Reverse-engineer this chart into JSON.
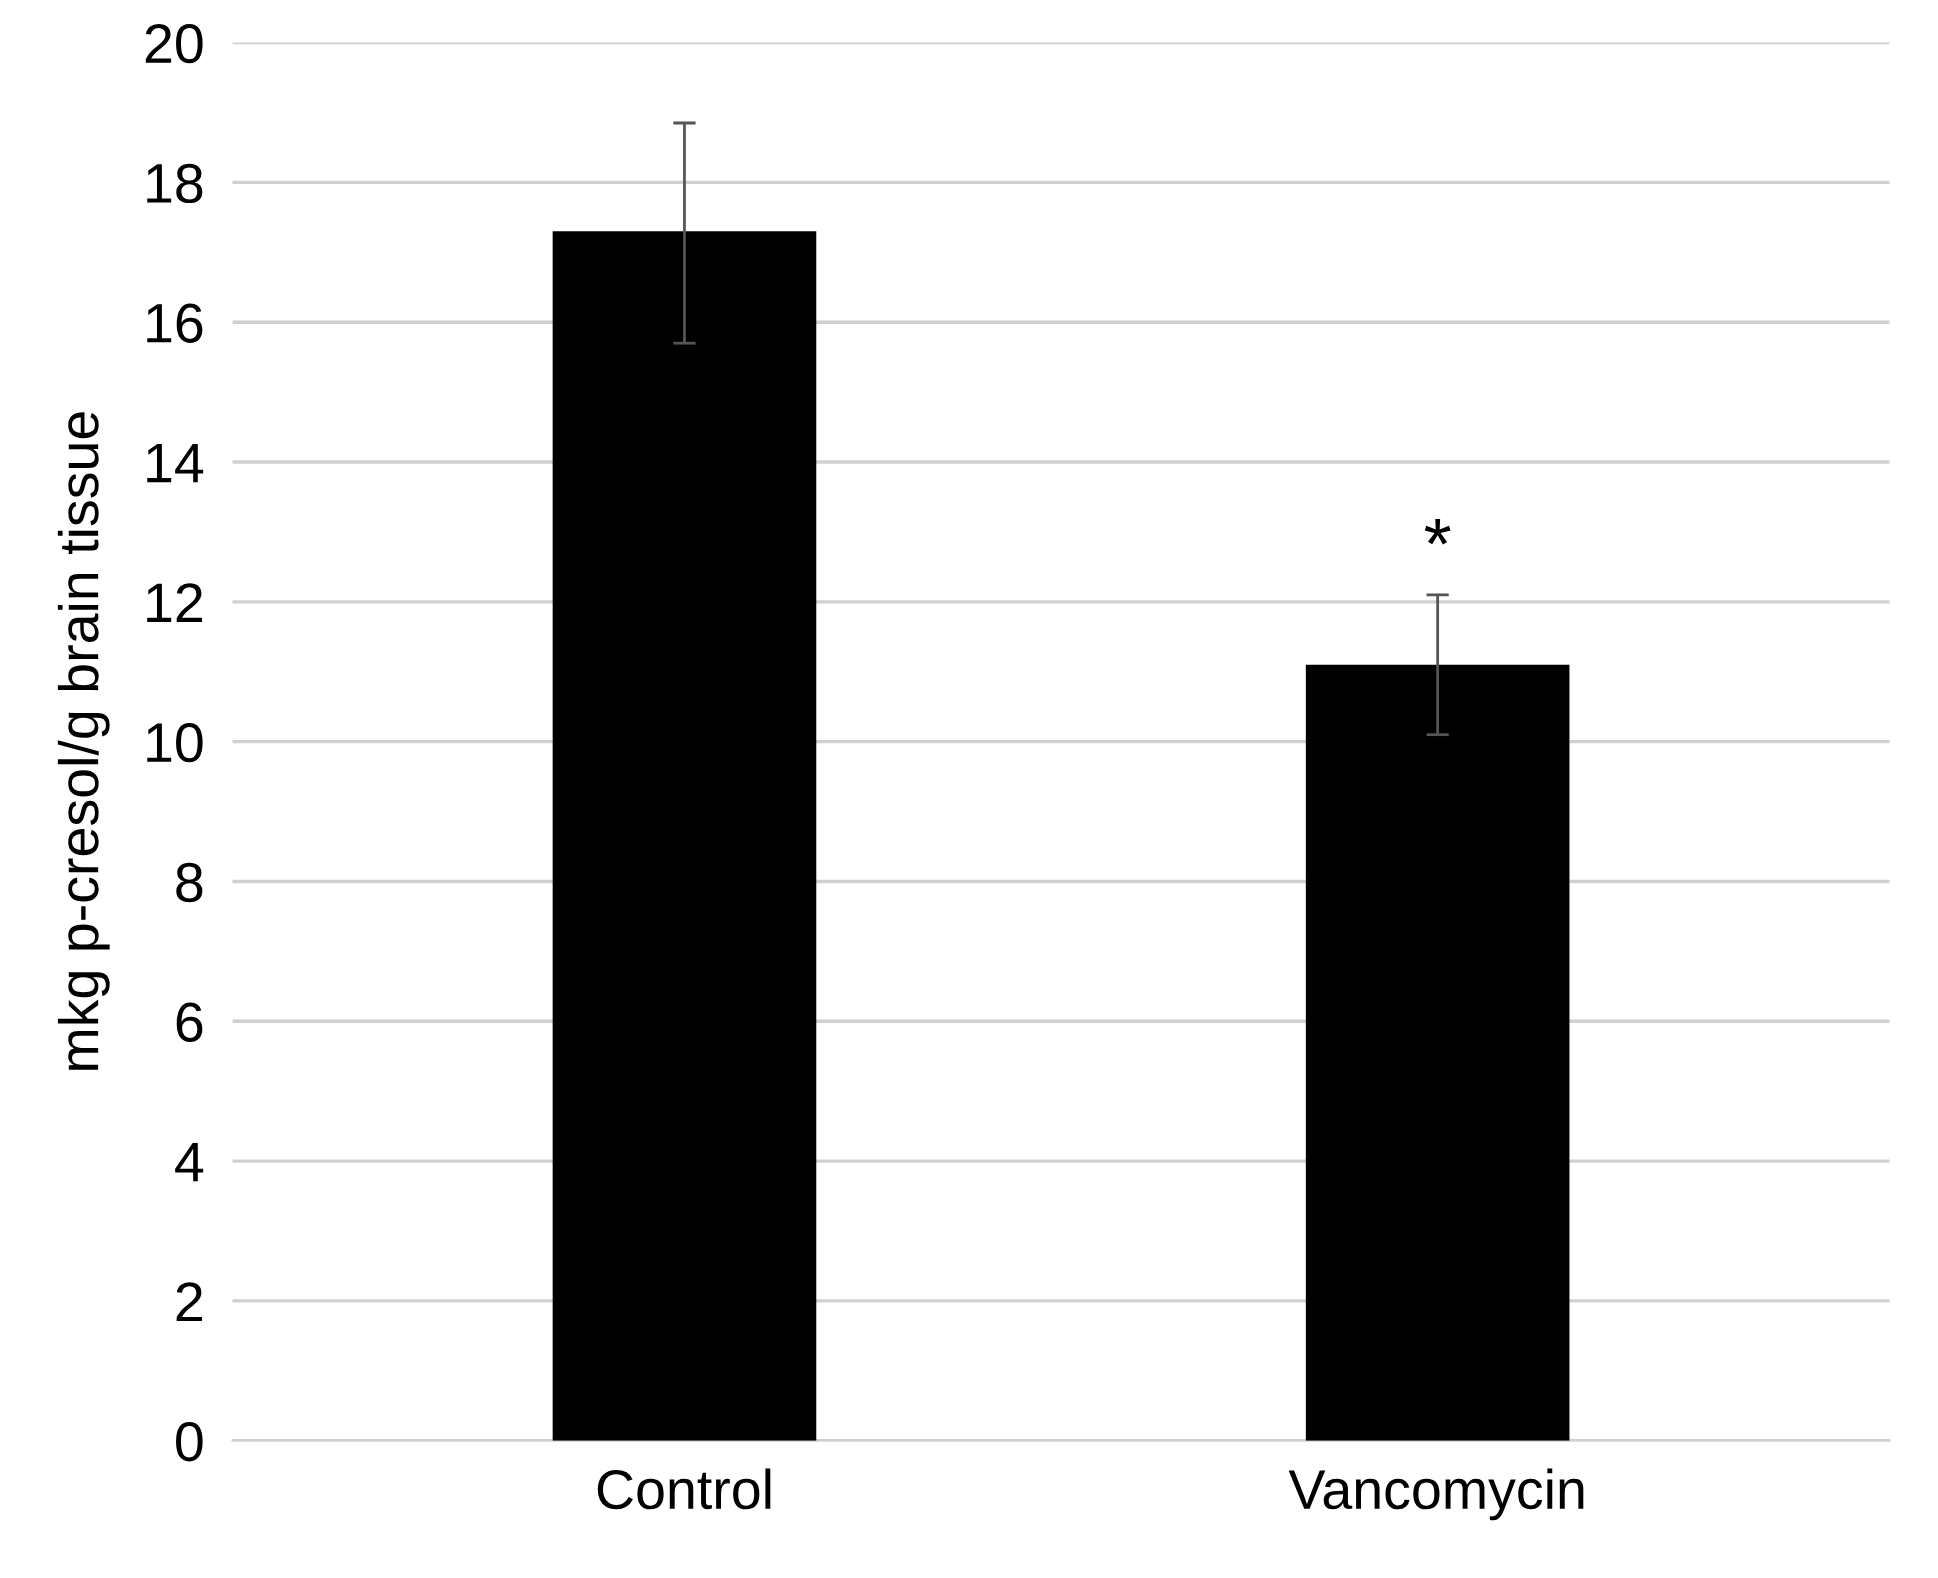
{
  "chart_data": {
    "type": "bar",
    "ylabel": "mkg p-cresol/g brain tissue",
    "categories": [
      "Control",
      "Vancomycin"
    ],
    "values": [
      17.3,
      11.1
    ],
    "errors": [
      [
        15.7,
        18.85
      ],
      [
        10.1,
        12.1
      ]
    ],
    "color": "#000000",
    "ylim": [
      0,
      20
    ],
    "yticks": [
      0,
      2,
      4,
      6,
      8,
      10,
      12,
      14,
      16,
      18,
      20
    ],
    "grid": "y",
    "annotations": [
      {
        "text": "*",
        "x": "Vancomycin",
        "y": 12.1
      }
    ]
  }
}
